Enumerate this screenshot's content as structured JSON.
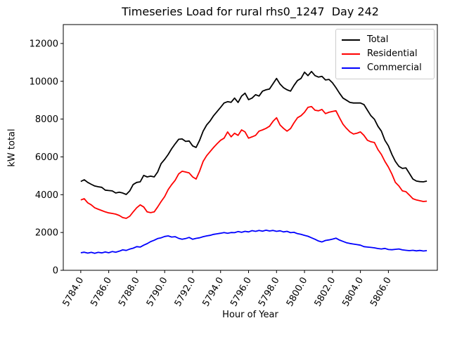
{
  "chart_data": {
    "type": "line",
    "title": "Timeseries Load for rural rhs0_1247  Day 242",
    "xlabel": "Hour of Year",
    "ylabel": "kW total",
    "grid": false,
    "legend_position": "upper right",
    "xlim": [
      5782.75,
      5809.5
    ],
    "ylim": [
      0,
      13000
    ],
    "x_ticks": [
      5784,
      5786,
      5788,
      5790,
      5792,
      5794,
      5796,
      5798,
      5800,
      5802,
      5804,
      5806
    ],
    "x_tick_labels": [
      "5784.0",
      "5786.0",
      "5788.0",
      "5790.0",
      "5792.0",
      "5794.0",
      "5796.0",
      "5798.0",
      "5800.0",
      "5802.0",
      "5804.0",
      "5806.0"
    ],
    "y_ticks": [
      0,
      2000,
      4000,
      6000,
      8000,
      10000,
      12000
    ],
    "y_tick_labels": [
      "0",
      "2000",
      "4000",
      "6000",
      "8000",
      "10000",
      "12000"
    ],
    "x": [
      5784.0,
      5784.25,
      5784.5,
      5784.75,
      5785.0,
      5785.25,
      5785.5,
      5785.75,
      5786.0,
      5786.25,
      5786.5,
      5786.75,
      5787.0,
      5787.25,
      5787.5,
      5787.75,
      5788.0,
      5788.25,
      5788.5,
      5788.75,
      5789.0,
      5789.25,
      5789.5,
      5789.75,
      5790.0,
      5790.25,
      5790.5,
      5790.75,
      5791.0,
      5791.25,
      5791.5,
      5791.75,
      5792.0,
      5792.25,
      5792.5,
      5792.75,
      5793.0,
      5793.25,
      5793.5,
      5793.75,
      5794.0,
      5794.25,
      5794.5,
      5794.75,
      5795.0,
      5795.25,
      5795.5,
      5795.75,
      5796.0,
      5796.25,
      5796.5,
      5796.75,
      5797.0,
      5797.25,
      5797.5,
      5797.75,
      5798.0,
      5798.25,
      5798.5,
      5798.75,
      5799.0,
      5799.25,
      5799.5,
      5799.75,
      5800.0,
      5800.25,
      5800.5,
      5800.75,
      5801.0,
      5801.25,
      5801.5,
      5801.75,
      5802.0,
      5802.25,
      5802.5,
      5802.75,
      5803.0,
      5803.25,
      5803.5,
      5803.75,
      5804.0,
      5804.25,
      5804.5,
      5804.75,
      5805.0,
      5805.25,
      5805.5,
      5805.75,
      5806.0,
      5806.25,
      5806.5,
      5806.75,
      5807.0,
      5807.25,
      5807.5,
      5807.75,
      5808.0,
      5808.25,
      5808.5,
      5808.75
    ],
    "series": [
      {
        "name": "Total",
        "color": "#000000",
        "values": [
          4700,
          4790,
          4650,
          4550,
          4460,
          4420,
          4390,
          4240,
          4220,
          4200,
          4090,
          4130,
          4090,
          4010,
          4200,
          4540,
          4650,
          4680,
          5020,
          4940,
          4980,
          4940,
          5200,
          5650,
          5870,
          6130,
          6430,
          6690,
          6930,
          6950,
          6820,
          6840,
          6580,
          6500,
          6880,
          7360,
          7690,
          7900,
          8180,
          8400,
          8620,
          8850,
          8920,
          8890,
          9110,
          8880,
          9220,
          9370,
          9030,
          9110,
          9290,
          9220,
          9480,
          9550,
          9590,
          9870,
          10150,
          9850,
          9660,
          9550,
          9480,
          9780,
          10040,
          10150,
          10480,
          10300,
          10520,
          10300,
          10220,
          10260,
          10070,
          10100,
          9920,
          9660,
          9370,
          9110,
          9000,
          8880,
          8850,
          8850,
          8850,
          8770,
          8470,
          8180,
          7990,
          7620,
          7360,
          6880,
          6580,
          6130,
          5760,
          5500,
          5390,
          5420,
          5130,
          4830,
          4720,
          4690,
          4680,
          4720
        ]
      },
      {
        "name": "Residential",
        "color": "#ff0000",
        "values": [
          3720,
          3790,
          3570,
          3460,
          3310,
          3230,
          3160,
          3090,
          3040,
          3010,
          2970,
          2900,
          2790,
          2750,
          2860,
          3090,
          3310,
          3460,
          3350,
          3090,
          3050,
          3090,
          3350,
          3640,
          3900,
          4270,
          4530,
          4760,
          5100,
          5240,
          5200,
          5150,
          4940,
          4830,
          5250,
          5760,
          6060,
          6280,
          6500,
          6700,
          6880,
          6990,
          7320,
          7060,
          7250,
          7140,
          7430,
          7320,
          6990,
          7060,
          7140,
          7360,
          7430,
          7510,
          7620,
          7880,
          8070,
          7690,
          7510,
          7360,
          7500,
          7800,
          8070,
          8180,
          8360,
          8620,
          8660,
          8470,
          8440,
          8510,
          8290,
          8360,
          8400,
          8440,
          8070,
          7730,
          7510,
          7320,
          7210,
          7250,
          7320,
          7140,
          6880,
          6800,
          6760,
          6390,
          6130,
          5760,
          5460,
          5090,
          4650,
          4460,
          4200,
          4160,
          3980,
          3790,
          3720,
          3680,
          3640,
          3660
        ]
      },
      {
        "name": "Commercial",
        "color": "#0000ff",
        "values": [
          930,
          960,
          910,
          950,
          900,
          950,
          920,
          970,
          930,
          990,
          960,
          1010,
          1080,
          1050,
          1120,
          1170,
          1250,
          1230,
          1330,
          1410,
          1520,
          1590,
          1680,
          1720,
          1790,
          1820,
          1760,
          1780,
          1690,
          1640,
          1680,
          1740,
          1640,
          1690,
          1720,
          1780,
          1820,
          1850,
          1900,
          1930,
          1960,
          2000,
          1960,
          2000,
          1990,
          2050,
          2010,
          2060,
          2030,
          2100,
          2060,
          2110,
          2070,
          2120,
          2080,
          2110,
          2060,
          2090,
          2030,
          2060,
          1990,
          2010,
          1940,
          1900,
          1850,
          1800,
          1720,
          1640,
          1550,
          1500,
          1580,
          1610,
          1650,
          1700,
          1600,
          1530,
          1460,
          1420,
          1390,
          1360,
          1330,
          1250,
          1230,
          1210,
          1190,
          1150,
          1130,
          1160,
          1100,
          1090,
          1110,
          1130,
          1080,
          1060,
          1040,
          1060,
          1030,
          1050,
          1020,
          1040
        ]
      }
    ]
  }
}
